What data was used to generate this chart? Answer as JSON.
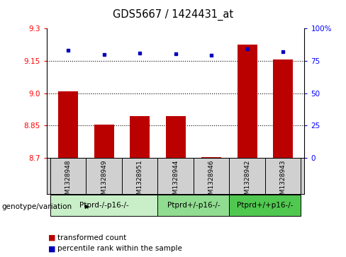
{
  "title": "GDS5667 / 1424431_at",
  "samples": [
    "GSM1328948",
    "GSM1328949",
    "GSM1328951",
    "GSM1328944",
    "GSM1328946",
    "GSM1328942",
    "GSM1328943"
  ],
  "red_values": [
    9.01,
    8.855,
    8.895,
    8.895,
    8.705,
    9.225,
    9.155
  ],
  "blue_values": [
    83,
    80,
    81,
    80.5,
    79,
    84,
    82
  ],
  "ylim_left": [
    8.7,
    9.3
  ],
  "ylim_right": [
    0,
    100
  ],
  "yticks_left": [
    8.7,
    8.85,
    9.0,
    9.15,
    9.3
  ],
  "yticks_right": [
    0,
    25,
    50,
    75,
    100
  ],
  "hlines": [
    8.85,
    9.0,
    9.15
  ],
  "groups": [
    {
      "label": "Ptprd-/-p16-/-",
      "indices": [
        0,
        1,
        2
      ],
      "color": "#c8efc8"
    },
    {
      "label": "Ptprd+/-p16-/-",
      "indices": [
        3,
        4
      ],
      "color": "#90dc90"
    },
    {
      "label": "Ptprd+/+p16-/-",
      "indices": [
        5,
        6
      ],
      "color": "#50c850"
    }
  ],
  "bar_color": "#bb0000",
  "dot_color": "#0000bb",
  "base_value": 8.7,
  "bar_width": 0.55,
  "legend_red_label": "transformed count",
  "legend_blue_label": "percentile rank within the sample",
  "genotype_label": "genotype/variation",
  "sample_bg": "#d0d0d0",
  "plot_bg": "#ffffff"
}
